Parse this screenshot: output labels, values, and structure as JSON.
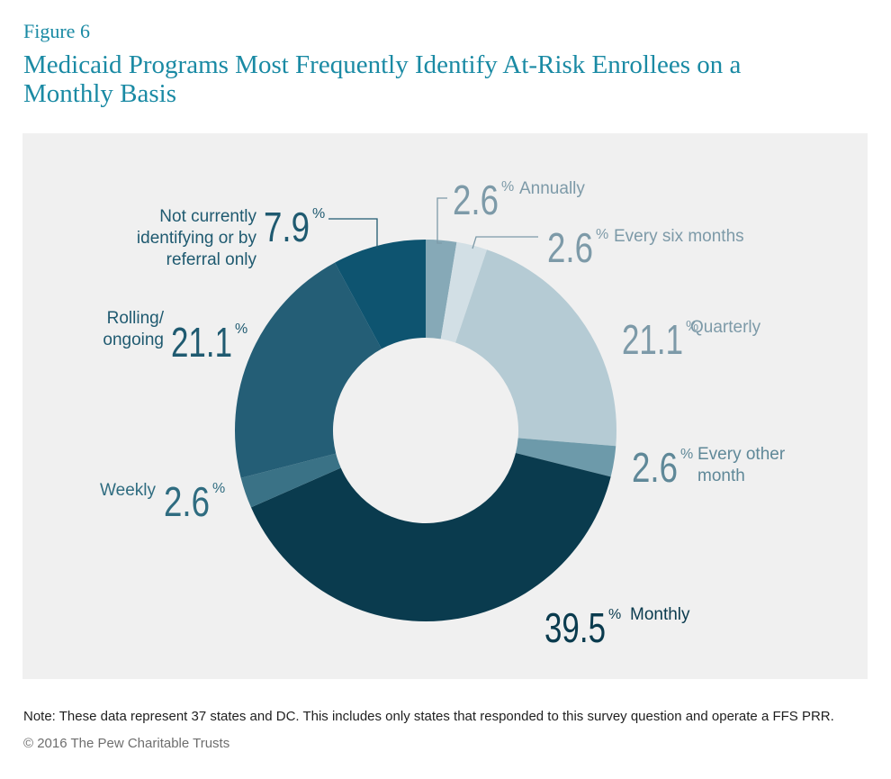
{
  "figure": {
    "label": "Figure 6",
    "title": "Medicaid Programs Most Frequently Identify At-Risk Enrollees on a Monthly Basis"
  },
  "footer": {
    "note": "Note: These data represent 37 states and DC. This includes only states that responded to this survey question and operate a FFS PRR.",
    "copyright": "© 2016 The Pew Charitable Trusts"
  },
  "chart_data": {
    "type": "pie",
    "variant": "donut",
    "unit": "%",
    "start": "top",
    "direction": "clockwise",
    "slices": [
      {
        "label": "Annually",
        "value": 2.6,
        "color": "#86a9b7",
        "text_color": "#7d9aa8"
      },
      {
        "label": "Every six months",
        "value": 2.6,
        "color": "#d2dfe5",
        "text_color": "#7d9aa8"
      },
      {
        "label": "Quarterly",
        "value": 21.1,
        "color": "#b5cbd4",
        "text_color": "#7d9aa8"
      },
      {
        "label": "Every other month",
        "value": 2.6,
        "color": "#6d9aaa",
        "text_color": "#5f8898"
      },
      {
        "label": "Monthly",
        "value": 39.5,
        "color": "#0a3b4e",
        "text_color": "#0a3b4e"
      },
      {
        "label": "Weekly",
        "value": 2.6,
        "color": "#3a7286",
        "text_color": "#2f6c80"
      },
      {
        "label": "Rolling/ ongoing",
        "value": 21.1,
        "color": "#245e76",
        "text_color": "#1f5a70"
      },
      {
        "label": "Not currently identifying or by referral only",
        "value": 7.9,
        "color": "#0e5470",
        "text_color": "#1f5a70"
      }
    ]
  }
}
